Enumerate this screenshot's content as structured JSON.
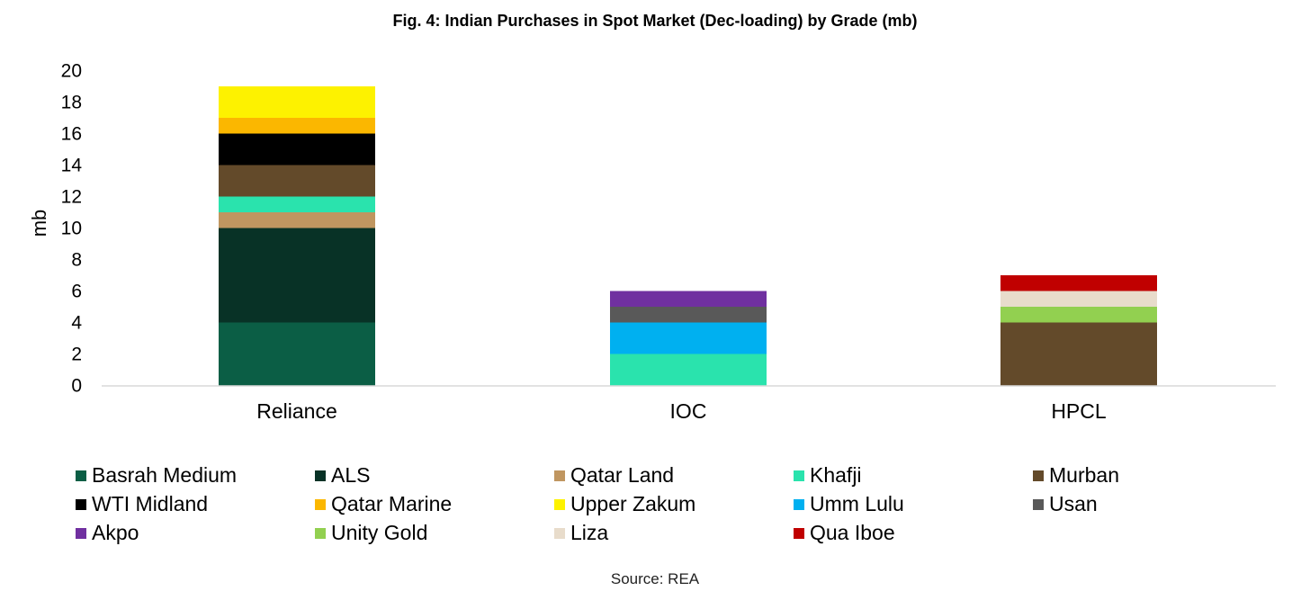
{
  "chart_data": {
    "type": "bar",
    "stacked": true,
    "title": "Fig. 4: Indian Purchases in Spot Market (Dec-loading) by Grade (mb)",
    "xlabel": "",
    "ylabel": "mb",
    "ylim": [
      0,
      20
    ],
    "yticks": [
      0,
      2,
      4,
      6,
      8,
      10,
      12,
      14,
      16,
      18,
      20
    ],
    "categories": [
      "Reliance",
      "IOC",
      "HPCL"
    ],
    "series": [
      {
        "name": "Basrah Medium",
        "color": "#0b5e45",
        "values": [
          4,
          0,
          0
        ]
      },
      {
        "name": "ALS",
        "color": "#083226",
        "values": [
          6,
          0,
          0
        ]
      },
      {
        "name": "Qatar Land",
        "color": "#c09660",
        "values": [
          1,
          0,
          0
        ]
      },
      {
        "name": "Khafji",
        "color": "#2ae3ad",
        "values": [
          1,
          2,
          0
        ]
      },
      {
        "name": "Murban",
        "color": "#634a2a",
        "values": [
          2,
          0,
          4
        ]
      },
      {
        "name": "WTI Midland",
        "color": "#000000",
        "values": [
          2,
          0,
          0
        ]
      },
      {
        "name": "Qatar Marine",
        "color": "#fbb700",
        "values": [
          1,
          0,
          0
        ]
      },
      {
        "name": "Upper Zakum",
        "color": "#fdf200",
        "values": [
          2,
          0,
          0
        ]
      },
      {
        "name": "Umm Lulu",
        "color": "#00b0f0",
        "values": [
          0,
          2,
          0
        ]
      },
      {
        "name": "Usan",
        "color": "#595959",
        "values": [
          0,
          1,
          0
        ]
      },
      {
        "name": "Akpo",
        "color": "#7030a0",
        "values": [
          0,
          1,
          0
        ]
      },
      {
        "name": "Unity Gold",
        "color": "#92d050",
        "values": [
          0,
          0,
          1
        ]
      },
      {
        "name": "Liza",
        "color": "#e8dccb",
        "values": [
          0,
          0,
          1
        ]
      },
      {
        "name": "Qua Iboe",
        "color": "#c00000",
        "values": [
          0,
          0,
          1
        ]
      }
    ],
    "legend_position": "bottom",
    "source": "Source: REA"
  }
}
